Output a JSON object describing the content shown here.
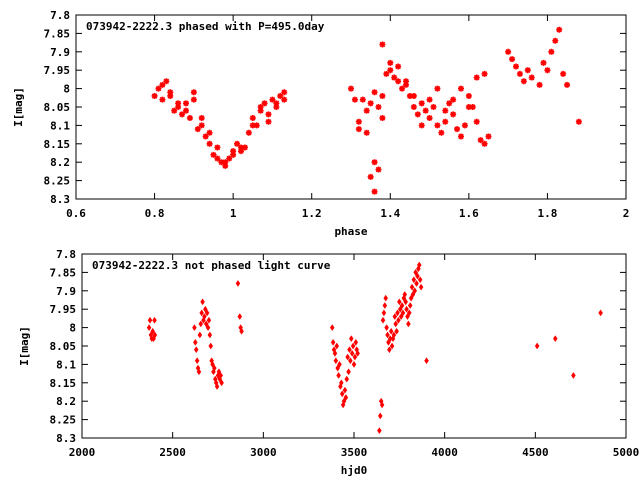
{
  "chart_data": [
    {
      "type": "scatter",
      "title": "073942-2222.3 phased with P=495.0day",
      "xlabel": "phase",
      "ylabel": "I[mag]",
      "xlim": [
        0.6,
        2
      ],
      "ylim": [
        7.8,
        8.3
      ],
      "y_inverted": true,
      "xticks": [
        "0.6",
        "0.8",
        "1",
        "1.2",
        "1.4",
        "1.6",
        "1.8",
        "2"
      ],
      "yticks": [
        "7.8",
        "7.85",
        "7.9",
        "7.95",
        "8",
        "8.05",
        "8.1",
        "8.15",
        "8.2",
        "8.25",
        "8.3"
      ],
      "marker": "cross",
      "grid": false,
      "color": "#ff0000",
      "series": [
        {
          "x": [
            0.8,
            0.81,
            0.82,
            0.83,
            0.84,
            0.85,
            0.86,
            0.87,
            0.88,
            0.89,
            0.9,
            0.91,
            0.92,
            0.93,
            0.94,
            0.95,
            0.96,
            0.97,
            0.98,
            0.99,
            1.0,
            1.01,
            1.02,
            1.03,
            1.04,
            1.05,
            1.06,
            1.07,
            1.08,
            1.09,
            1.1,
            1.11,
            1.12,
            1.13,
            0.82,
            0.84,
            0.86,
            0.88,
            0.9,
            0.92,
            0.94,
            0.96,
            0.98,
            1.0,
            1.02,
            1.05,
            1.07,
            1.09,
            1.11,
            1.13,
            1.3,
            1.31,
            1.32,
            1.33,
            1.34,
            1.35,
            1.36,
            1.37,
            1.38,
            1.39,
            1.4,
            1.41,
            1.42,
            1.43,
            1.44,
            1.45,
            1.46,
            1.47,
            1.48,
            1.49,
            1.5,
            1.51,
            1.52,
            1.53,
            1.54,
            1.55,
            1.56,
            1.57,
            1.58,
            1.59,
            1.6,
            1.61,
            1.62,
            1.63,
            1.64,
            1.65,
            1.32,
            1.34,
            1.36,
            1.38,
            1.4,
            1.42,
            1.44,
            1.46,
            1.48,
            1.5,
            1.52,
            1.54,
            1.56,
            1.58,
            1.6,
            1.62,
            1.64,
            1.35,
            1.36,
            1.37,
            1.38,
            1.7,
            1.71,
            1.72,
            1.73,
            1.74,
            1.75,
            1.76,
            1.78,
            1.79,
            1.8,
            1.81,
            1.82,
            1.83,
            1.84,
            1.85,
            1.88
          ],
          "y": [
            8.02,
            8.0,
            8.03,
            7.98,
            8.01,
            8.06,
            8.04,
            8.07,
            8.06,
            8.08,
            8.03,
            8.11,
            8.1,
            8.13,
            8.15,
            8.18,
            8.19,
            8.2,
            8.21,
            8.19,
            8.17,
            8.15,
            8.17,
            8.16,
            8.12,
            8.08,
            8.1,
            8.05,
            8.04,
            8.07,
            8.03,
            8.04,
            8.02,
            8.03,
            7.99,
            8.02,
            8.05,
            8.04,
            8.01,
            8.08,
            8.12,
            8.16,
            8.2,
            8.18,
            8.16,
            8.1,
            8.06,
            8.09,
            8.05,
            8.01,
            8.0,
            8.03,
            8.09,
            8.03,
            8.06,
            8.04,
            8.01,
            8.05,
            8.02,
            7.96,
            7.95,
            7.97,
            7.98,
            8.0,
            7.98,
            8.02,
            8.05,
            8.07,
            8.04,
            8.06,
            8.08,
            8.05,
            8.1,
            8.12,
            8.09,
            8.04,
            8.07,
            8.11,
            8.13,
            8.1,
            8.02,
            8.05,
            8.09,
            8.14,
            8.15,
            8.13,
            8.11,
            8.12,
            8.2,
            8.08,
            7.93,
            7.94,
            7.99,
            8.02,
            8.1,
            8.03,
            8.0,
            8.06,
            8.03,
            8.0,
            8.05,
            7.97,
            7.96,
            8.24,
            8.28,
            8.22,
            7.88,
            7.9,
            7.92,
            7.94,
            7.96,
            7.98,
            7.95,
            7.97,
            7.99,
            7.93,
            7.95,
            7.9,
            7.87,
            7.84,
            7.96,
            7.99,
            8.09
          ]
        }
      ]
    },
    {
      "type": "scatter",
      "title": "073942-2222.3 not phased light curve",
      "xlabel": "hjd0",
      "ylabel": "I[mag]",
      "xlim": [
        2000,
        5000
      ],
      "ylim": [
        7.8,
        8.3
      ],
      "y_inverted": true,
      "xticks": [
        "2000",
        "2500",
        "3000",
        "3500",
        "4000",
        "4500",
        "5000"
      ],
      "yticks": [
        "7.8",
        "7.85",
        "7.9",
        "7.95",
        "8",
        "8.05",
        "8.1",
        "8.15",
        "8.2",
        "8.25",
        "8.3"
      ],
      "marker": "diamond",
      "grid": false,
      "color": "#ff0000",
      "series": [
        {
          "x": [
            2370,
            2375,
            2380,
            2385,
            2390,
            2395,
            2400,
            2402,
            2620,
            2625,
            2630,
            2635,
            2640,
            2645,
            2650,
            2655,
            2660,
            2665,
            2670,
            2675,
            2680,
            2685,
            2690,
            2695,
            2700,
            2705,
            2710,
            2715,
            2720,
            2725,
            2730,
            2735,
            2740,
            2745,
            2750,
            2755,
            2760,
            2765,
            2770,
            2860,
            2870,
            2875,
            2880,
            3380,
            3385,
            3390,
            3395,
            3400,
            3405,
            3410,
            3415,
            3420,
            3425,
            3430,
            3435,
            3440,
            3445,
            3450,
            3455,
            3460,
            3465,
            3470,
            3475,
            3480,
            3485,
            3490,
            3495,
            3500,
            3505,
            3510,
            3515,
            3520,
            3640,
            3645,
            3650,
            3655,
            3660,
            3665,
            3670,
            3675,
            3680,
            3685,
            3690,
            3695,
            3700,
            3705,
            3710,
            3715,
            3720,
            3725,
            3730,
            3735,
            3740,
            3745,
            3750,
            3755,
            3760,
            3765,
            3770,
            3775,
            3780,
            3785,
            3790,
            3795,
            3800,
            3805,
            3810,
            3815,
            3820,
            3825,
            3830,
            3835,
            3840,
            3845,
            3850,
            3855,
            3860,
            3865,
            3870,
            3900,
            4510,
            4610,
            4710,
            4860
          ],
          "y": [
            8.0,
            7.98,
            8.02,
            8.03,
            8.01,
            8.03,
            7.98,
            8.02,
            8.0,
            8.04,
            8.06,
            8.09,
            8.11,
            8.12,
            8.02,
            7.99,
            7.96,
            7.93,
            7.98,
            7.97,
            7.95,
            7.99,
            7.96,
            8.0,
            7.98,
            8.02,
            8.05,
            8.09,
            8.1,
            8.12,
            8.11,
            8.14,
            8.15,
            8.16,
            8.13,
            8.12,
            8.14,
            8.13,
            8.15,
            7.88,
            7.97,
            8.0,
            8.01,
            8.0,
            8.04,
            8.06,
            8.07,
            8.09,
            8.05,
            8.11,
            8.13,
            8.1,
            8.16,
            8.15,
            8.18,
            8.21,
            8.2,
            8.17,
            8.19,
            8.14,
            8.08,
            8.12,
            8.06,
            8.09,
            8.03,
            8.07,
            8.05,
            8.1,
            8.08,
            8.04,
            8.06,
            8.07,
            8.28,
            8.24,
            8.2,
            8.21,
            7.98,
            7.96,
            7.94,
            7.92,
            8.0,
            8.02,
            8.04,
            8.06,
            8.03,
            8.01,
            8.05,
            8.03,
            8.02,
            7.97,
            7.99,
            8.01,
            7.96,
            7.98,
            7.93,
            7.95,
            7.97,
            7.94,
            7.96,
            7.92,
            7.91,
            7.93,
            7.95,
            7.97,
            7.99,
            7.96,
            7.94,
            7.92,
            7.89,
            7.91,
            7.87,
            7.9,
            7.85,
            7.88,
            7.86,
            7.84,
            7.83,
            7.87,
            7.89,
            8.09,
            8.05,
            8.03,
            8.13,
            7.96
          ]
        }
      ]
    }
  ]
}
